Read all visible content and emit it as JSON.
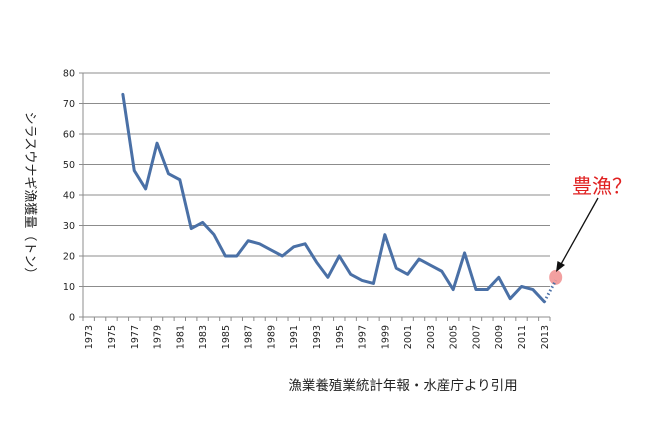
{
  "chart_data": {
    "type": "line",
    "ylabel": "シラスウナギ漁獲量（トン）",
    "xlabel": "",
    "source_note": "漁業養殖業統計年報・水産庁より引用",
    "ylim": [
      0,
      80
    ],
    "yticks": [
      0,
      10,
      20,
      30,
      40,
      50,
      60,
      70,
      80
    ],
    "xlim": [
      1973,
      2014
    ],
    "xticks": [
      1973,
      1975,
      1977,
      1979,
      1981,
      1983,
      1985,
      1987,
      1989,
      1991,
      1993,
      1995,
      1997,
      1999,
      2001,
      2003,
      2005,
      2007,
      2009,
      2011,
      2013
    ],
    "grid": "horizontal",
    "series": [
      {
        "color": "#4a70a6",
        "x": [
          1976,
          1977,
          1978,
          1979,
          1980,
          1981,
          1982,
          1983,
          1984,
          1985,
          1986,
          1987,
          1988,
          1989,
          1990,
          1991,
          1992,
          1993,
          1994,
          1995,
          1996,
          1997,
          1998,
          1999,
          2000,
          2001,
          2002,
          2003,
          2004,
          2005,
          2006,
          2007,
          2008,
          2009,
          2010,
          2011,
          2012,
          2013
        ],
        "y": [
          73,
          48,
          42,
          57,
          47,
          45,
          29,
          31,
          27,
          20,
          20,
          25,
          24,
          22,
          20,
          23,
          24,
          18,
          13,
          20,
          14,
          12,
          11,
          27,
          16,
          14,
          19,
          17,
          15,
          9,
          21,
          9,
          9,
          13,
          6,
          10,
          9,
          5
        ]
      }
    ],
    "projection": {
      "color": "#4a70a6",
      "style": "dotted",
      "x": [
        2013,
        2014
      ],
      "y": [
        5,
        12
      ]
    },
    "highlight": {
      "x": 2014,
      "y": 13,
      "color": "#f2a0a0"
    },
    "annotation": {
      "text": "豊漁？",
      "color": "#e02020"
    }
  }
}
